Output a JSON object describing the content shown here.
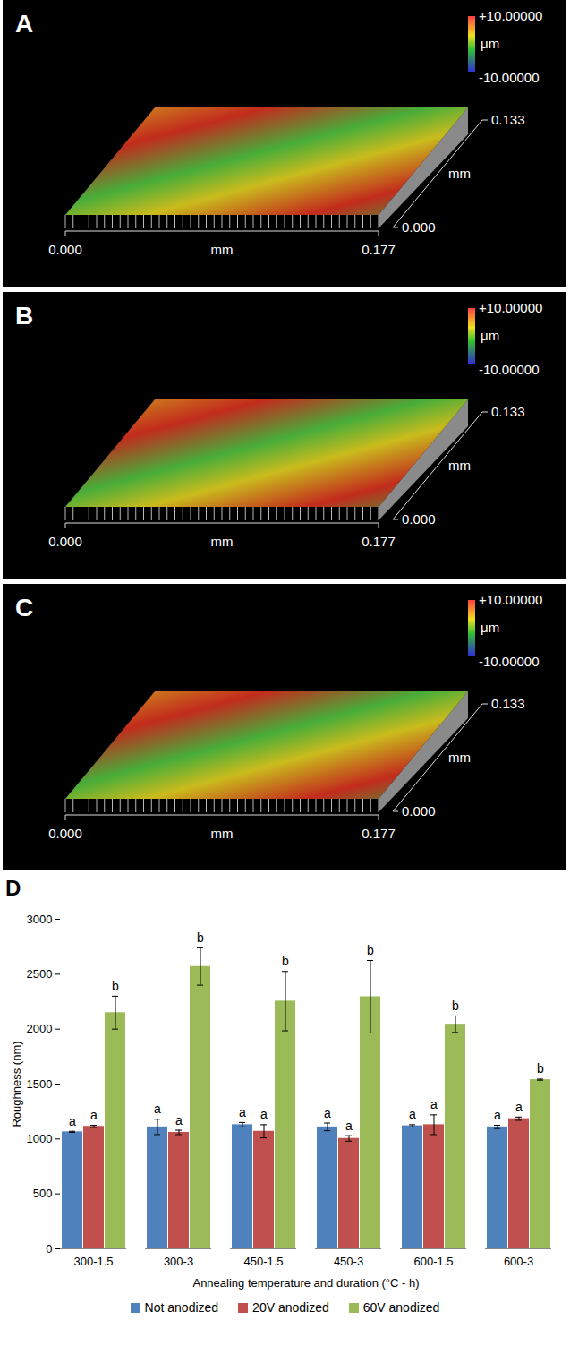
{
  "panels": [
    {
      "label": "A",
      "colorbar": {
        "max": {
          "value": 10,
          "label": "+10.00000"
        },
        "min": {
          "value": -10,
          "label": "-10.00000"
        },
        "unit": "μm"
      },
      "x_axis": {
        "ticks": [
          {
            "value": 0,
            "label": "0.000"
          },
          {
            "value": 0.177,
            "label": "0.177"
          }
        ],
        "unit": "mm"
      },
      "y_axis": {
        "ticks": [
          {
            "value": 0,
            "label": "0.000"
          },
          {
            "value": 0.133,
            "label": "0.133"
          }
        ],
        "unit": "mm"
      }
    },
    {
      "label": "B",
      "colorbar": {
        "max": {
          "value": 10,
          "label": "+10.00000"
        },
        "min": {
          "value": -10,
          "label": "-10.00000"
        },
        "unit": "μm"
      },
      "x_axis": {
        "ticks": [
          {
            "value": 0,
            "label": "0.000"
          },
          {
            "value": 0.177,
            "label": "0.177"
          }
        ],
        "unit": "mm"
      },
      "y_axis": {
        "ticks": [
          {
            "value": 0,
            "label": "0.000"
          },
          {
            "value": 0.133,
            "label": "0.133"
          }
        ],
        "unit": "mm"
      }
    },
    {
      "label": "C",
      "colorbar": {
        "max": {
          "value": 10,
          "label": "+10.00000"
        },
        "min": {
          "value": -10,
          "label": "-10.00000"
        },
        "unit": "μm"
      },
      "x_axis": {
        "ticks": [
          {
            "value": 0,
            "label": "0.000"
          },
          {
            "value": 0.177,
            "label": "0.177"
          }
        ],
        "unit": "mm"
      },
      "y_axis": {
        "ticks": [
          {
            "value": 0,
            "label": "0.000"
          },
          {
            "value": 0.133,
            "label": "0.133"
          }
        ],
        "unit": "mm"
      }
    }
  ],
  "chart_data": {
    "panel_label": "D",
    "type": "bar",
    "x_label": "Annealing temperature and duration (°C - h)",
    "y_label": "Roughness (nm)",
    "categories": [
      "300-1.5",
      "300-3",
      "450-1.5",
      "450-3",
      "600-1.5",
      "600-3"
    ],
    "series": [
      {
        "name": "Not anodized",
        "color": "#4f81bd",
        "values": [
          1065,
          1110,
          1130,
          1110,
          1120,
          1110
        ],
        "errors": [
          5,
          70,
          20,
          35,
          10,
          15
        ],
        "letters": [
          "a",
          "a",
          "a",
          "a",
          "a",
          "a"
        ]
      },
      {
        "name": "20V anodized",
        "color": "#c0504d",
        "values": [
          1115,
          1060,
          1070,
          1005,
          1130,
          1185
        ],
        "errors": [
          10,
          20,
          60,
          25,
          90,
          15
        ],
        "letters": [
          "a",
          "a",
          "a",
          "a",
          "a",
          "a"
        ]
      },
      {
        "name": "60V anodized",
        "color": "#9bbb59",
        "values": [
          2150,
          2570,
          2255,
          2295,
          2045,
          1540
        ],
        "errors": [
          150,
          170,
          270,
          330,
          75,
          5
        ],
        "letters": [
          "b",
          "b",
          "b",
          "b",
          "b",
          "b"
        ]
      }
    ],
    "ylim": [
      0,
      3000
    ],
    "yticks": [
      0,
      500,
      1000,
      1500,
      2000,
      2500,
      3000
    ],
    "grid": false,
    "legend": "bottom"
  }
}
